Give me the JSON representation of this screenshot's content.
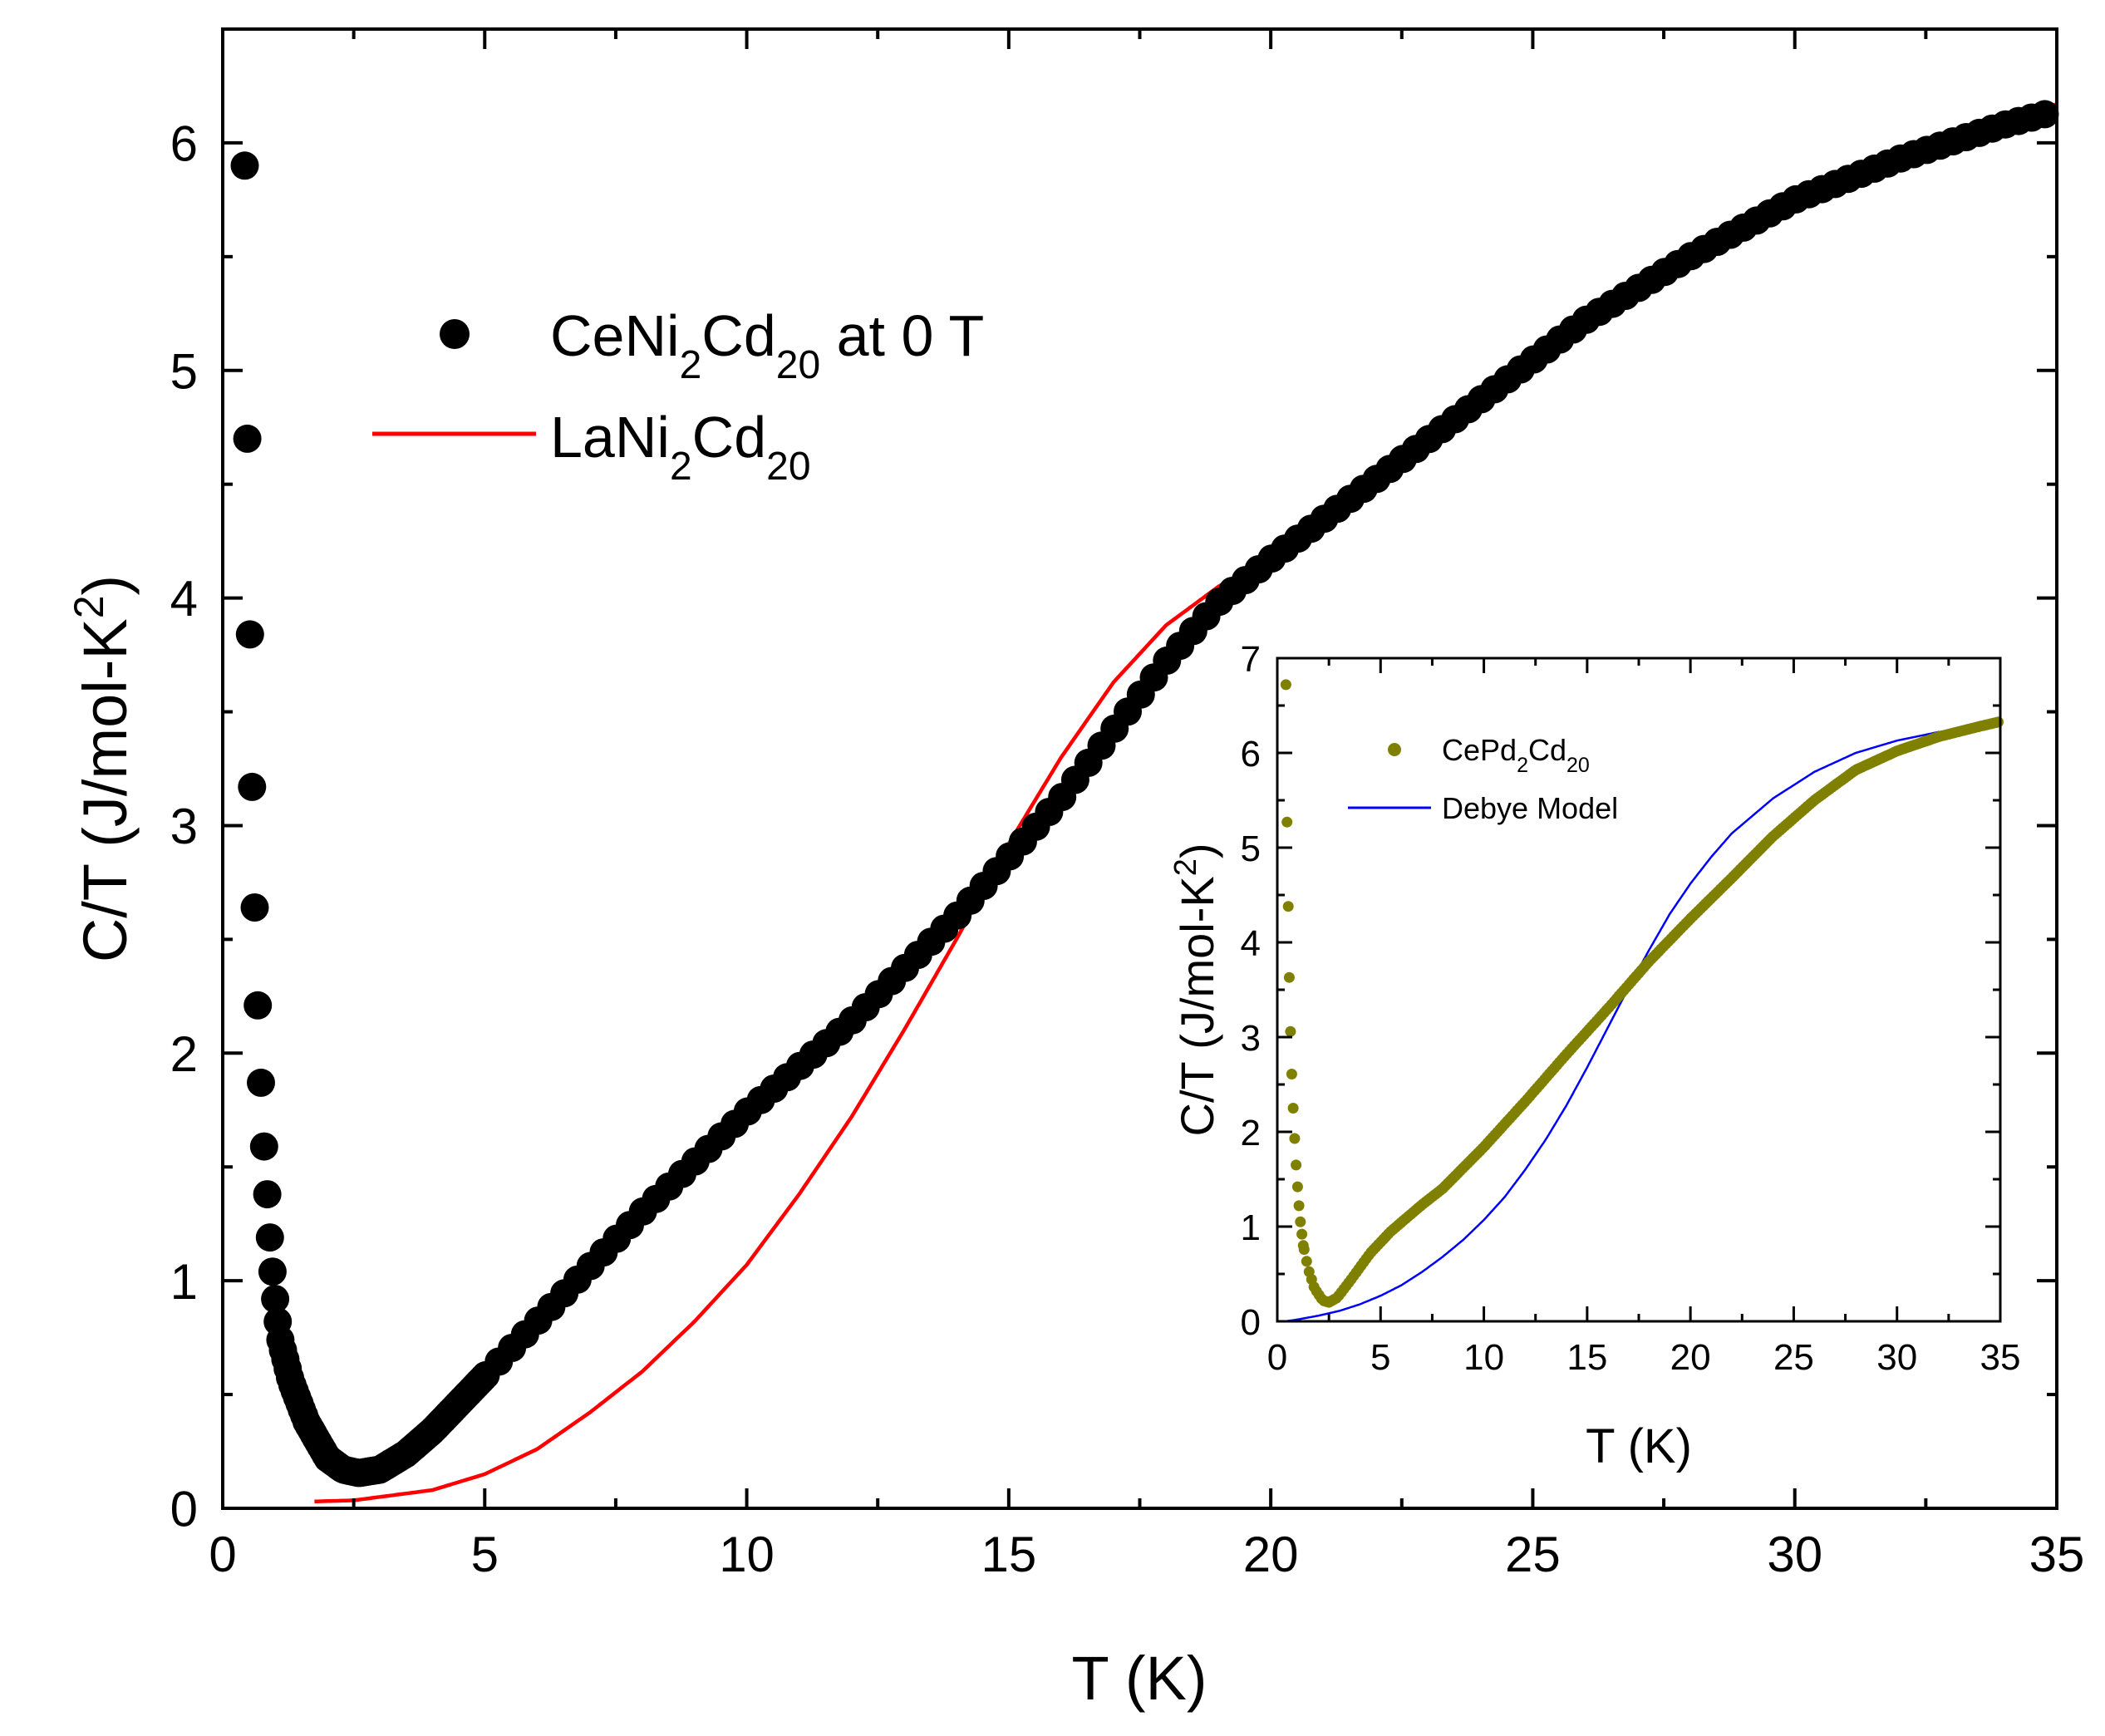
{
  "chart_data": [
    {
      "id": "main",
      "type": "scatter",
      "xlabel": "T (K)",
      "ylabel": {
        "pre": "C/T (J/mol-K",
        "sup": "2",
        "post": ")"
      },
      "xlim": [
        0,
        35
      ],
      "ylim": [
        0,
        6.5
      ],
      "xticks": [
        0,
        5,
        10,
        15,
        20,
        25,
        30,
        35
      ],
      "yticks": [
        0,
        1,
        2,
        3,
        4,
        5,
        6
      ],
      "xtick_labels": [
        "0",
        "5",
        "10",
        "15",
        "20",
        "25",
        "30",
        "35"
      ],
      "ytick_labels": [
        "0",
        "1",
        "2",
        "3",
        "4",
        "5",
        "6"
      ],
      "legend_position": "top-left",
      "series": [
        {
          "name": "CeNi2Cd20 at 0 T",
          "legend_label": {
            "a": "CeNi",
            "b": "2",
            "c": "Cd",
            "d": "20",
            "e": " at 0 T"
          },
          "style": "markers",
          "color": "#000000",
          "upturn": [
            [
              0.42,
              5.9
            ],
            [
              0.47,
              4.7
            ],
            [
              0.52,
              3.84
            ],
            [
              0.56,
              3.17
            ],
            [
              0.61,
              2.64
            ],
            [
              0.67,
              2.21
            ],
            [
              0.73,
              1.87
            ],
            [
              0.79,
              1.59
            ],
            [
              0.85,
              1.38
            ],
            [
              0.9,
              1.19
            ],
            [
              0.95,
              1.04
            ],
            [
              1.0,
              0.92
            ],
            [
              1.05,
              0.82
            ],
            [
              1.1,
              0.74
            ]
          ],
          "knots": [
            [
              1.1,
              0.74
            ],
            [
              1.3,
              0.56
            ],
            [
              1.6,
              0.38
            ],
            [
              2.0,
              0.22
            ],
            [
              2.3,
              0.17
            ],
            [
              2.6,
              0.155
            ],
            [
              3.0,
              0.17
            ],
            [
              3.5,
              0.24
            ],
            [
              4.0,
              0.34
            ],
            [
              5.0,
              0.58
            ],
            [
              6.0,
              0.82
            ],
            [
              8.0,
              1.3
            ],
            [
              10.0,
              1.74
            ],
            [
              12.0,
              2.14
            ],
            [
              14.0,
              2.6
            ],
            [
              16.0,
              3.12
            ],
            [
              18.0,
              3.72
            ],
            [
              19.0,
              3.98
            ],
            [
              20.0,
              4.17
            ],
            [
              22.0,
              4.52
            ],
            [
              24.0,
              4.87
            ],
            [
              26.0,
              5.22
            ],
            [
              28.0,
              5.5
            ],
            [
              30.0,
              5.75
            ],
            [
              32.0,
              5.93
            ],
            [
              34.0,
              6.08
            ],
            [
              35.0,
              6.14
            ]
          ],
          "sampling": {
            "start": 1.15,
            "dense_end": 5.0,
            "dense_step": 0.045,
            "sparse_step": 0.25
          }
        },
        {
          "name": "LaNi2Cd20",
          "legend_label": {
            "a": "LaNi",
            "b": "2",
            "c": "Cd",
            "d": "20",
            "e": ""
          },
          "style": "line",
          "color": "#ff0000",
          "knots": [
            [
              1.75,
              0.03
            ],
            [
              2.5,
              0.035
            ],
            [
              3.0,
              0.05
            ],
            [
              4.0,
              0.08
            ],
            [
              5.0,
              0.15
            ],
            [
              6.0,
              0.26
            ],
            [
              7.0,
              0.42
            ],
            [
              8.0,
              0.6
            ],
            [
              9.0,
              0.82
            ],
            [
              10.0,
              1.07
            ],
            [
              11.0,
              1.38
            ],
            [
              12.0,
              1.72
            ],
            [
              13.0,
              2.1
            ],
            [
              14.0,
              2.5
            ],
            [
              15.0,
              2.92
            ],
            [
              16.0,
              3.3
            ],
            [
              17.0,
              3.63
            ],
            [
              18.0,
              3.88
            ],
            [
              19.0,
              4.05
            ],
            [
              20.0,
              4.18
            ],
            [
              21.0,
              4.32
            ],
            [
              22.0,
              4.5
            ],
            [
              24.0,
              4.87
            ],
            [
              26.0,
              5.22
            ],
            [
              28.0,
              5.5
            ],
            [
              30.0,
              5.75
            ],
            [
              32.0,
              5.95
            ],
            [
              34.0,
              6.1
            ],
            [
              35.0,
              6.17
            ]
          ]
        }
      ]
    },
    {
      "id": "inset",
      "type": "scatter",
      "xlabel": "T (K)",
      "ylabel": {
        "pre": "C/T (J/mol-K",
        "sup": "2",
        "post": ")"
      },
      "xlim": [
        0,
        35
      ],
      "ylim": [
        0,
        7
      ],
      "xticks": [
        0,
        5,
        10,
        15,
        20,
        25,
        30,
        35
      ],
      "yticks": [
        0,
        1,
        2,
        3,
        4,
        5,
        6,
        7
      ],
      "xtick_labels": [
        "0",
        "5",
        "10",
        "15",
        "20",
        "25",
        "30",
        "35"
      ],
      "ytick_labels": [
        "0",
        "1",
        "2",
        "3",
        "4",
        "5",
        "6",
        "7"
      ],
      "legend_position": "top-left",
      "series": [
        {
          "name": "CePd2Cd20",
          "legend_label": {
            "a": "CePd",
            "b": "2",
            "c": "Cd",
            "d": "20",
            "e": ""
          },
          "style": "markers",
          "color": "#808000",
          "upturn": [
            [
              0.42,
              6.72
            ],
            [
              0.47,
              5.27
            ],
            [
              0.53,
              4.38
            ],
            [
              0.58,
              3.63
            ],
            [
              0.64,
              3.06
            ],
            [
              0.7,
              2.61
            ],
            [
              0.77,
              2.25
            ],
            [
              0.84,
              1.93
            ],
            [
              0.91,
              1.65
            ],
            [
              0.98,
              1.42
            ],
            [
              1.05,
              1.22
            ],
            [
              1.12,
              1.05
            ],
            [
              1.19,
              0.92
            ],
            [
              1.26,
              0.8
            ]
          ],
          "knots": [
            [
              1.26,
              0.8
            ],
            [
              1.5,
              0.55
            ],
            [
              1.8,
              0.35
            ],
            [
              2.2,
              0.22
            ],
            [
              2.5,
              0.2
            ],
            [
              2.9,
              0.25
            ],
            [
              3.5,
              0.42
            ],
            [
              4.5,
              0.72
            ],
            [
              5.5,
              0.95
            ],
            [
              7.0,
              1.23
            ],
            [
              8.0,
              1.4
            ],
            [
              10.0,
              1.84
            ],
            [
              12.0,
              2.32
            ],
            [
              14.0,
              2.82
            ],
            [
              16.0,
              3.3
            ],
            [
              18.0,
              3.8
            ],
            [
              20.0,
              4.25
            ],
            [
              22.0,
              4.68
            ],
            [
              24.0,
              5.12
            ],
            [
              26.0,
              5.5
            ],
            [
              28.0,
              5.82
            ],
            [
              30.0,
              6.02
            ],
            [
              32.0,
              6.17
            ],
            [
              34.0,
              6.28
            ],
            [
              35.0,
              6.33
            ]
          ],
          "sampling": {
            "start": 1.3,
            "dense_end": 35.0,
            "dense_step": 0.12,
            "sparse_step": 0.12
          }
        },
        {
          "name": "Debye Model",
          "legend_label": {
            "a": "Debye Model",
            "b": "",
            "c": "",
            "d": "",
            "e": ""
          },
          "style": "line",
          "color": "#0000ff",
          "knots": [
            [
              0.4,
              0.0
            ],
            [
              1.0,
              0.02
            ],
            [
              2.0,
              0.06
            ],
            [
              3.0,
              0.11
            ],
            [
              4.0,
              0.18
            ],
            [
              5.0,
              0.27
            ],
            [
              6.0,
              0.38
            ],
            [
              7.0,
              0.52
            ],
            [
              8.0,
              0.68
            ],
            [
              9.0,
              0.86
            ],
            [
              10.0,
              1.07
            ],
            [
              11.0,
              1.31
            ],
            [
              12.0,
              1.6
            ],
            [
              13.0,
              1.92
            ],
            [
              14.0,
              2.28
            ],
            [
              15.0,
              2.68
            ],
            [
              16.0,
              3.1
            ],
            [
              17.0,
              3.52
            ],
            [
              18.0,
              3.92
            ],
            [
              19.0,
              4.3
            ],
            [
              20.0,
              4.62
            ],
            [
              21.0,
              4.9
            ],
            [
              22.0,
              5.15
            ],
            [
              24.0,
              5.52
            ],
            [
              26.0,
              5.8
            ],
            [
              28.0,
              6.0
            ],
            [
              30.0,
              6.13
            ],
            [
              32.0,
              6.22
            ],
            [
              34.0,
              6.28
            ],
            [
              35.0,
              6.3
            ]
          ]
        }
      ]
    }
  ]
}
